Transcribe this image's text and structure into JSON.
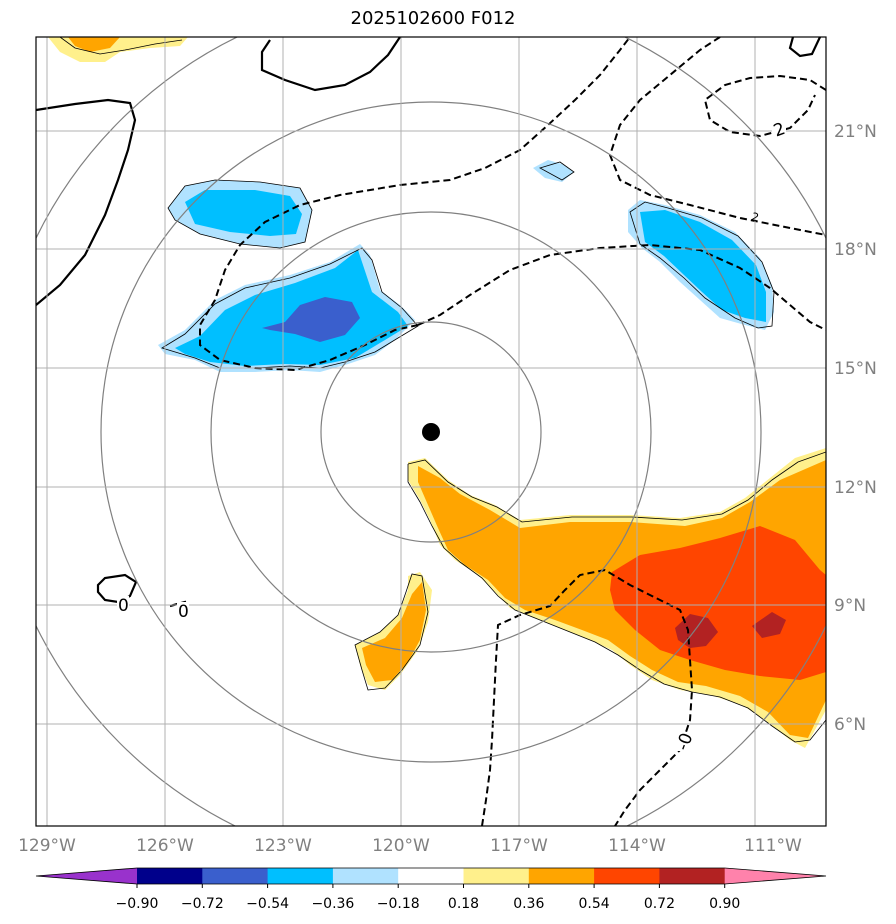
{
  "title": "2025102600 F012",
  "map": {
    "lon_range": [
      -129,
      -109
    ],
    "lat_range": [
      3.5,
      23.5
    ],
    "center_marker": {
      "lon": -119.2,
      "lat": 13.4
    },
    "range_rings_deg": [
      2.75,
      5.5,
      8.25,
      11
    ],
    "contour_labels": [
      "0",
      "0",
      "2",
      "-0",
      "2"
    ]
  },
  "axes": {
    "x_ticks": [
      "129°W",
      "126°W",
      "123°W",
      "120°W",
      "117°W",
      "114°W",
      "111°W"
    ],
    "y_ticks": [
      "21°N",
      "18°N",
      "15°N",
      "12°N",
      "9°N",
      "6°N"
    ]
  },
  "colorbar": {
    "ticks": [
      "−0.90",
      "−0.72",
      "−0.54",
      "−0.36",
      "−0.18",
      "0.18",
      "0.36",
      "0.54",
      "0.72",
      "0.90"
    ],
    "colors": [
      "#9932cc",
      "#00008b",
      "#3a5fcd",
      "#00bfff",
      "#b0e2ff",
      "#ffffff",
      "#fff08c",
      "#ffa500",
      "#ff4500",
      "#b22222",
      "#ff82ab"
    ]
  }
}
